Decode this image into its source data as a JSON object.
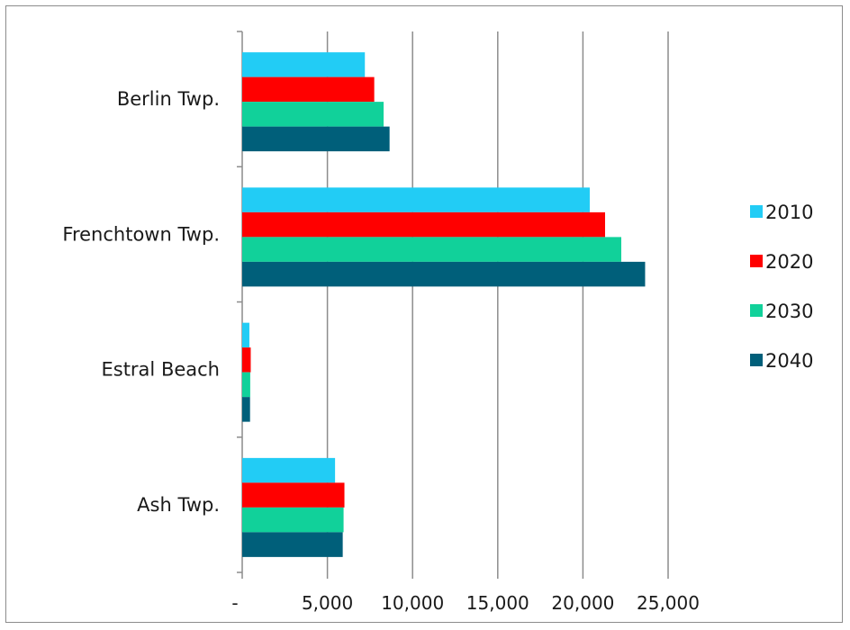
{
  "chart_data": {
    "type": "bar",
    "orientation": "horizontal",
    "title": "",
    "xlabel": "",
    "ylabel": "",
    "categories": [
      "Berlin Twp.",
      "Frenchtown Twp.",
      "Estral Beach",
      "Ash Twp."
    ],
    "series": [
      {
        "name": "2010",
        "color": "#22ccf5",
        "values": [
          7200,
          20400,
          420,
          5450
        ]
      },
      {
        "name": "2020",
        "color": "#ff0000",
        "values": [
          7750,
          21300,
          500,
          6000
        ]
      },
      {
        "name": "2030",
        "color": "#11d19a",
        "values": [
          8300,
          22250,
          470,
          5950
        ]
      },
      {
        "name": "2040",
        "color": "#005f7a",
        "values": [
          8650,
          23650,
          460,
          5900
        ]
      }
    ],
    "xlim": [
      0,
      25000
    ],
    "xticks": [
      0,
      5000,
      10000,
      15000,
      20000,
      25000
    ],
    "xtick_labels": [
      "-",
      "5,000",
      "10,000",
      "15,000",
      "20,000",
      "25,000"
    ],
    "grid": "vertical",
    "legend": "right"
  }
}
